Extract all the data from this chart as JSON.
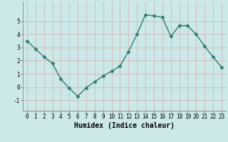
{
  "x": [
    0,
    1,
    2,
    3,
    4,
    5,
    6,
    7,
    8,
    9,
    10,
    11,
    12,
    13,
    14,
    15,
    16,
    17,
    18,
    19,
    20,
    21,
    22,
    23
  ],
  "y": [
    3.5,
    2.9,
    2.3,
    1.8,
    0.6,
    -0.1,
    -0.7,
    -0.05,
    0.4,
    0.85,
    1.2,
    1.6,
    2.7,
    4.0,
    5.5,
    5.4,
    5.3,
    3.85,
    4.65,
    4.65,
    4.0,
    3.1,
    2.3,
    1.5
  ],
  "line_color": "#2e7d6e",
  "bg_color": "#cce8e8",
  "grid_color_major": "#d4b8b8",
  "grid_color_minor": "#c8dede",
  "xlabel": "Humidex (Indice chaleur)",
  "ylim": [
    -1.8,
    6.5
  ],
  "xlim": [
    -0.5,
    23.5
  ],
  "yticks": [
    -1,
    0,
    1,
    2,
    3,
    4,
    5
  ],
  "xticks": [
    0,
    1,
    2,
    3,
    4,
    5,
    6,
    7,
    8,
    9,
    10,
    11,
    12,
    13,
    14,
    15,
    16,
    17,
    18,
    19,
    20,
    21,
    22,
    23
  ],
  "markersize": 2.5,
  "linewidth": 1.0,
  "tick_fontsize": 5.5,
  "xlabel_fontsize": 7.0
}
